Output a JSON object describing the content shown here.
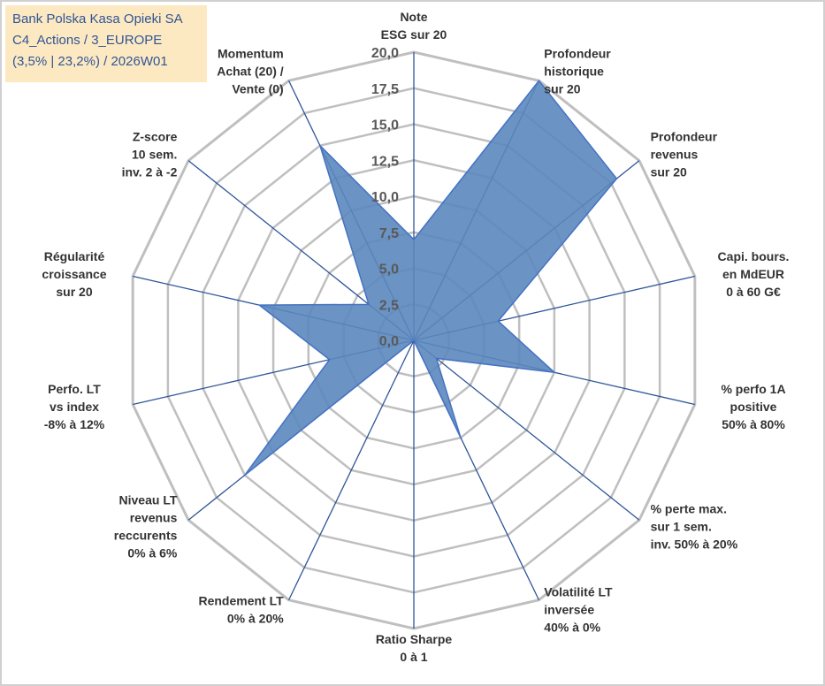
{
  "info_box": {
    "line1": "Bank Polska Kasa Opieki SA",
    "line2": "C4_Actions / 3_EUROPE",
    "line3": "(3,5% | 23,2%) / 2026W01"
  },
  "colors": {
    "grid": "#bfbfbf",
    "spoke": "#2f5597",
    "fill": "#5b87bd",
    "fill_stroke": "#4472c4"
  },
  "chart_data": {
    "type": "radar",
    "title": "",
    "rlim": [
      0,
      20
    ],
    "ticks": [
      "0,0",
      "2,5",
      "5,0",
      "7,5",
      "10,0",
      "12,5",
      "15,0",
      "17,5",
      "20,0"
    ],
    "grid": true,
    "categories": [
      [
        "Note",
        "ESG sur 20"
      ],
      [
        "Profondeur",
        "historique",
        "sur 20"
      ],
      [
        "Profondeur",
        "revenus",
        "sur 20"
      ],
      [
        "Capi. bours.",
        "en MdEUR",
        "0 à 60 G€"
      ],
      [
        "% perfo 1A",
        "positive",
        "50% à 80%"
      ],
      [
        "% perte max.",
        "sur 1 sem.",
        "inv. 50% à 20%"
      ],
      [
        "Volatilité LT",
        "inversée",
        "40% à 0%"
      ],
      [
        "Ratio Sharpe",
        "0 à 1"
      ],
      [
        "Rendement LT",
        "0% à 20%"
      ],
      [
        "Niveau LT",
        "revenus",
        "reccurents",
        "0% à 6%"
      ],
      [
        "Perfo. LT",
        "vs index",
        "-8% à 12%"
      ],
      [
        "Régularité",
        "croissance",
        "sur 20"
      ],
      [
        "Z-score",
        "10 sem.",
        "inv. 2 à -2"
      ],
      [
        "Momentum",
        "Achat (20) /",
        "Vente (0)"
      ]
    ],
    "series": [
      {
        "values": [
          7.0,
          20.0,
          18.0,
          6.0,
          10.0,
          2.0,
          7.5,
          0.0,
          0.0,
          15.0,
          6.0,
          11.0,
          4.0,
          15.0
        ]
      }
    ]
  }
}
